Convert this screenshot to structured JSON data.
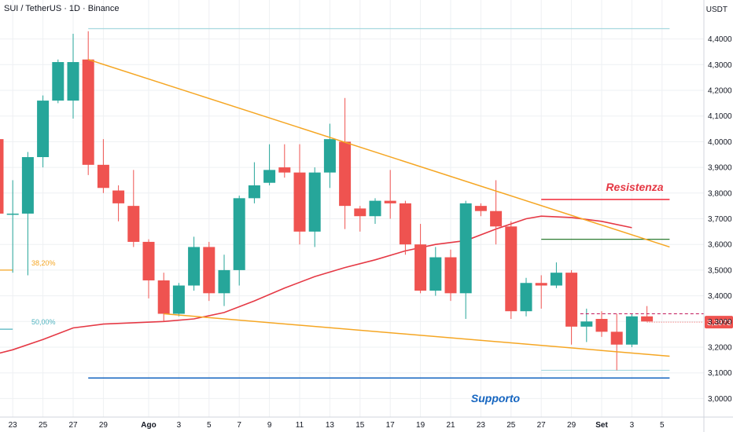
{
  "header": {
    "title": "SUI / TetherUS · 1D · Binance",
    "currency": "USDT"
  },
  "chart_data": {
    "type": "candlestick",
    "ylim": [
      2.95,
      4.5
    ],
    "y_ticks": [
      3.0,
      3.1,
      3.2,
      3.3,
      3.4,
      3.5,
      3.6,
      3.7,
      3.8,
      3.9,
      4.0,
      4.1,
      4.2,
      4.3,
      4.4
    ],
    "y_tick_labels": [
      "3,0000",
      "3,1000",
      "3,2000",
      "3,3000",
      "3,4000",
      "3,5000",
      "3,6000",
      "3,7000",
      "3,8000",
      "3,9000",
      "4,0000",
      "4,1000",
      "4,2000",
      "4,3000",
      "4,4000"
    ],
    "x_tick_labels": [
      "23",
      "25",
      "27",
      "29",
      "Ago",
      "3",
      "5",
      "7",
      "9",
      "11",
      "13",
      "15",
      "17",
      "19",
      "21",
      "23",
      "25",
      "27",
      "29",
      "Set",
      "3",
      "5"
    ],
    "x_tick_days": [
      -9,
      -7,
      -5,
      -3,
      0,
      2,
      4,
      6,
      8,
      10,
      12,
      14,
      16,
      18,
      20,
      22,
      24,
      26,
      28,
      30,
      32,
      34
    ],
    "candles": [
      {
        "t": -11,
        "o": 4.01,
        "h": 4.02,
        "l": 3.9,
        "c": 3.96
      },
      {
        "t": -10,
        "o": 4.01,
        "h": 4.02,
        "l": 3.44,
        "c": 3.72
      },
      {
        "t": -9,
        "o": 3.72,
        "h": 3.85,
        "l": 3.49,
        "c": 3.72
      },
      {
        "t": -8,
        "o": 3.72,
        "h": 3.96,
        "l": 3.48,
        "c": 3.94
      },
      {
        "t": -7,
        "o": 3.94,
        "h": 4.18,
        "l": 3.9,
        "c": 4.16
      },
      {
        "t": -6,
        "o": 4.16,
        "h": 4.32,
        "l": 4.15,
        "c": 4.31
      },
      {
        "t": -5,
        "o": 4.16,
        "h": 4.42,
        "l": 4.09,
        "c": 4.31
      },
      {
        "t": -4,
        "o": 4.32,
        "h": 4.43,
        "l": 3.87,
        "c": 3.91
      },
      {
        "t": -3,
        "o": 3.91,
        "h": 4.01,
        "l": 3.8,
        "c": 3.82
      },
      {
        "t": -2,
        "o": 3.81,
        "h": 3.83,
        "l": 3.69,
        "c": 3.76
      },
      {
        "t": -1,
        "o": 3.75,
        "h": 3.89,
        "l": 3.59,
        "c": 3.61
      },
      {
        "t": 0,
        "o": 3.61,
        "h": 3.62,
        "l": 3.39,
        "c": 3.46
      },
      {
        "t": 1,
        "o": 3.46,
        "h": 3.49,
        "l": 3.3,
        "c": 3.33
      },
      {
        "t": 2,
        "o": 3.33,
        "h": 3.45,
        "l": 3.32,
        "c": 3.44
      },
      {
        "t": 3,
        "o": 3.44,
        "h": 3.63,
        "l": 3.42,
        "c": 3.59
      },
      {
        "t": 4,
        "o": 3.59,
        "h": 3.61,
        "l": 3.38,
        "c": 3.41
      },
      {
        "t": 5,
        "o": 3.41,
        "h": 3.56,
        "l": 3.36,
        "c": 3.5
      },
      {
        "t": 6,
        "o": 3.5,
        "h": 3.79,
        "l": 3.44,
        "c": 3.78
      },
      {
        "t": 7,
        "o": 3.78,
        "h": 3.92,
        "l": 3.76,
        "c": 3.83
      },
      {
        "t": 8,
        "o": 3.84,
        "h": 3.99,
        "l": 3.83,
        "c": 3.89
      },
      {
        "t": 9,
        "o": 3.9,
        "h": 3.99,
        "l": 3.86,
        "c": 3.88
      },
      {
        "t": 10,
        "o": 3.88,
        "h": 3.99,
        "l": 3.6,
        "c": 3.65
      },
      {
        "t": 11,
        "o": 3.65,
        "h": 3.9,
        "l": 3.59,
        "c": 3.88
      },
      {
        "t": 12,
        "o": 3.88,
        "h": 4.07,
        "l": 3.82,
        "c": 4.01
      },
      {
        "t": 13,
        "o": 4.0,
        "h": 4.17,
        "l": 3.66,
        "c": 3.75
      },
      {
        "t": 14,
        "o": 3.74,
        "h": 3.75,
        "l": 3.65,
        "c": 3.71
      },
      {
        "t": 15,
        "o": 3.71,
        "h": 3.78,
        "l": 3.68,
        "c": 3.77
      },
      {
        "t": 16,
        "o": 3.77,
        "h": 3.89,
        "l": 3.7,
        "c": 3.76
      },
      {
        "t": 17,
        "o": 3.76,
        "h": 3.77,
        "l": 3.56,
        "c": 3.6
      },
      {
        "t": 18,
        "o": 3.6,
        "h": 3.68,
        "l": 3.41,
        "c": 3.42
      },
      {
        "t": 19,
        "o": 3.42,
        "h": 3.59,
        "l": 3.4,
        "c": 3.55
      },
      {
        "t": 20,
        "o": 3.55,
        "h": 3.58,
        "l": 3.38,
        "c": 3.41
      },
      {
        "t": 21,
        "o": 3.41,
        "h": 3.77,
        "l": 3.31,
        "c": 3.76
      },
      {
        "t": 22,
        "o": 3.75,
        "h": 3.76,
        "l": 3.71,
        "c": 3.73
      },
      {
        "t": 23,
        "o": 3.73,
        "h": 3.85,
        "l": 3.6,
        "c": 3.67
      },
      {
        "t": 24,
        "o": 3.67,
        "h": 3.69,
        "l": 3.31,
        "c": 3.34
      },
      {
        "t": 25,
        "o": 3.34,
        "h": 3.47,
        "l": 3.32,
        "c": 3.45
      },
      {
        "t": 26,
        "o": 3.45,
        "h": 3.48,
        "l": 3.35,
        "c": 3.44
      },
      {
        "t": 27,
        "o": 3.44,
        "h": 3.53,
        "l": 3.43,
        "c": 3.49
      },
      {
        "t": 28,
        "o": 3.49,
        "h": 3.5,
        "l": 3.21,
        "c": 3.28
      },
      {
        "t": 29,
        "o": 3.28,
        "h": 3.35,
        "l": 3.22,
        "c": 3.3
      },
      {
        "t": 30,
        "o": 3.31,
        "h": 3.34,
        "l": 3.24,
        "c": 3.26
      },
      {
        "t": 31,
        "o": 3.26,
        "h": 3.33,
        "l": 3.11,
        "c": 3.21
      },
      {
        "t": 32,
        "o": 3.21,
        "h": 3.33,
        "l": 3.2,
        "c": 3.32
      },
      {
        "t": 33,
        "o": 3.32,
        "h": 3.36,
        "l": 3.3,
        "c": 3.3
      }
    ],
    "moving_average": [
      [
        -11,
        3.16
      ],
      [
        -9,
        3.19
      ],
      [
        -7,
        3.23
      ],
      [
        -5,
        3.275
      ],
      [
        -3,
        3.29
      ],
      [
        -1,
        3.295
      ],
      [
        1,
        3.3
      ],
      [
        3,
        3.31
      ],
      [
        5,
        3.335
      ],
      [
        7,
        3.38
      ],
      [
        9,
        3.43
      ],
      [
        11,
        3.475
      ],
      [
        13,
        3.51
      ],
      [
        15,
        3.54
      ],
      [
        17,
        3.575
      ],
      [
        19,
        3.6
      ],
      [
        21,
        3.615
      ],
      [
        23,
        3.66
      ],
      [
        25,
        3.7
      ],
      [
        26,
        3.71
      ],
      [
        28,
        3.705
      ],
      [
        30,
        3.69
      ],
      [
        32,
        3.665
      ]
    ],
    "trendlines": [
      {
        "name": "upper",
        "color": "#f5a623",
        "points": [
          [
            -4,
            4.32
          ],
          [
            34.5,
            3.59
          ]
        ]
      },
      {
        "name": "lower",
        "color": "#f5a623",
        "points": [
          [
            1,
            3.33
          ],
          [
            34.5,
            3.165
          ]
        ]
      }
    ],
    "levels": [
      {
        "name": "top",
        "price": 4.44,
        "from": -4,
        "to": 34.5,
        "color": "#a7d8df"
      },
      {
        "name": "fib_382",
        "price": 3.5,
        "from": -11.2,
        "to": -9,
        "color": "#f5a623",
        "label": "38,20%"
      },
      {
        "name": "fib_500",
        "price": 3.27,
        "from": -11.2,
        "to": -9,
        "color": "#4fb3bf",
        "label": "50,00%"
      },
      {
        "name": "resistenza",
        "price": 3.775,
        "from": 26,
        "to": 34.5,
        "color": "#f23645"
      },
      {
        "name": "green_level",
        "price": 3.62,
        "from": 26,
        "to": 34.5,
        "color": "#2e7d32"
      },
      {
        "name": "low_level",
        "price": 3.11,
        "from": 26,
        "to": 34.5,
        "color": "#a7d8df"
      },
      {
        "name": "supporto",
        "price": 3.08,
        "from": -4,
        "to": 34.5,
        "color": "#1565c0"
      }
    ],
    "annotations": {
      "resistenza": "Resistenza",
      "supporto": "Supporto"
    },
    "last_price": {
      "value": 3.2973,
      "label": "3,2973"
    },
    "colors": {
      "up": "#26a69a",
      "down": "#ef5350",
      "ma": "#e53945",
      "grid": "#eef0f3",
      "axis_text": "#131722"
    }
  }
}
